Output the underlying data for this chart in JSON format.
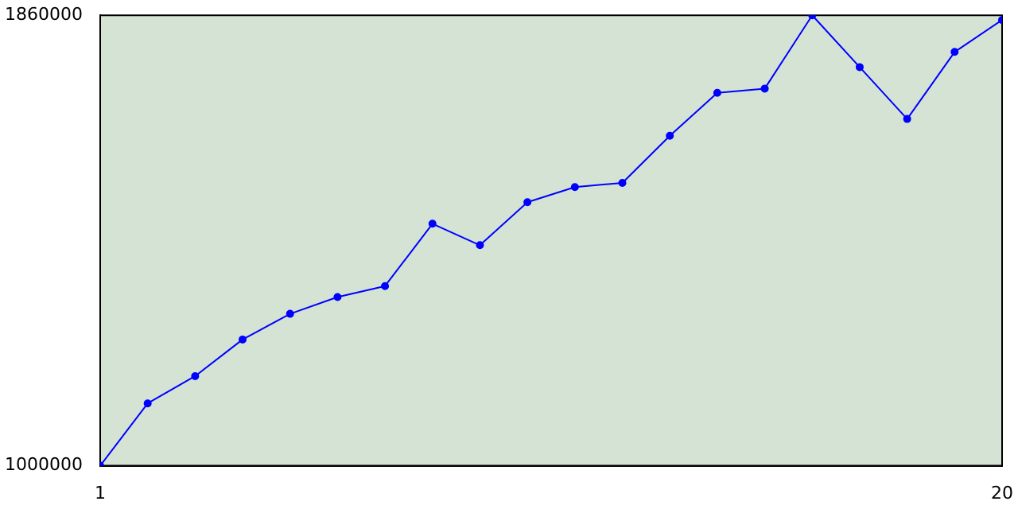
{
  "chart_data": {
    "type": "line",
    "x": [
      1,
      2,
      3,
      4,
      5,
      6,
      7,
      8,
      9,
      10,
      11,
      12,
      13,
      14,
      15,
      16,
      17,
      18,
      19,
      20
    ],
    "series": [
      {
        "color": "#0000ff",
        "values": [
          1000000,
          1119000,
          1171000,
          1241000,
          1290000,
          1322000,
          1343000,
          1462000,
          1421000,
          1503000,
          1532000,
          1540000,
          1630000,
          1712000,
          1720000,
          1860000,
          1761000,
          1662000,
          1790000,
          1851000
        ]
      }
    ],
    "xlim": [
      1,
      20
    ],
    "xticks": [
      1,
      20
    ],
    "ylim": [
      1000000,
      1860000
    ],
    "yticks": [
      1000000,
      1860000
    ],
    "grid": false,
    "legend": false,
    "marker": "circle",
    "line_style": "solid"
  }
}
